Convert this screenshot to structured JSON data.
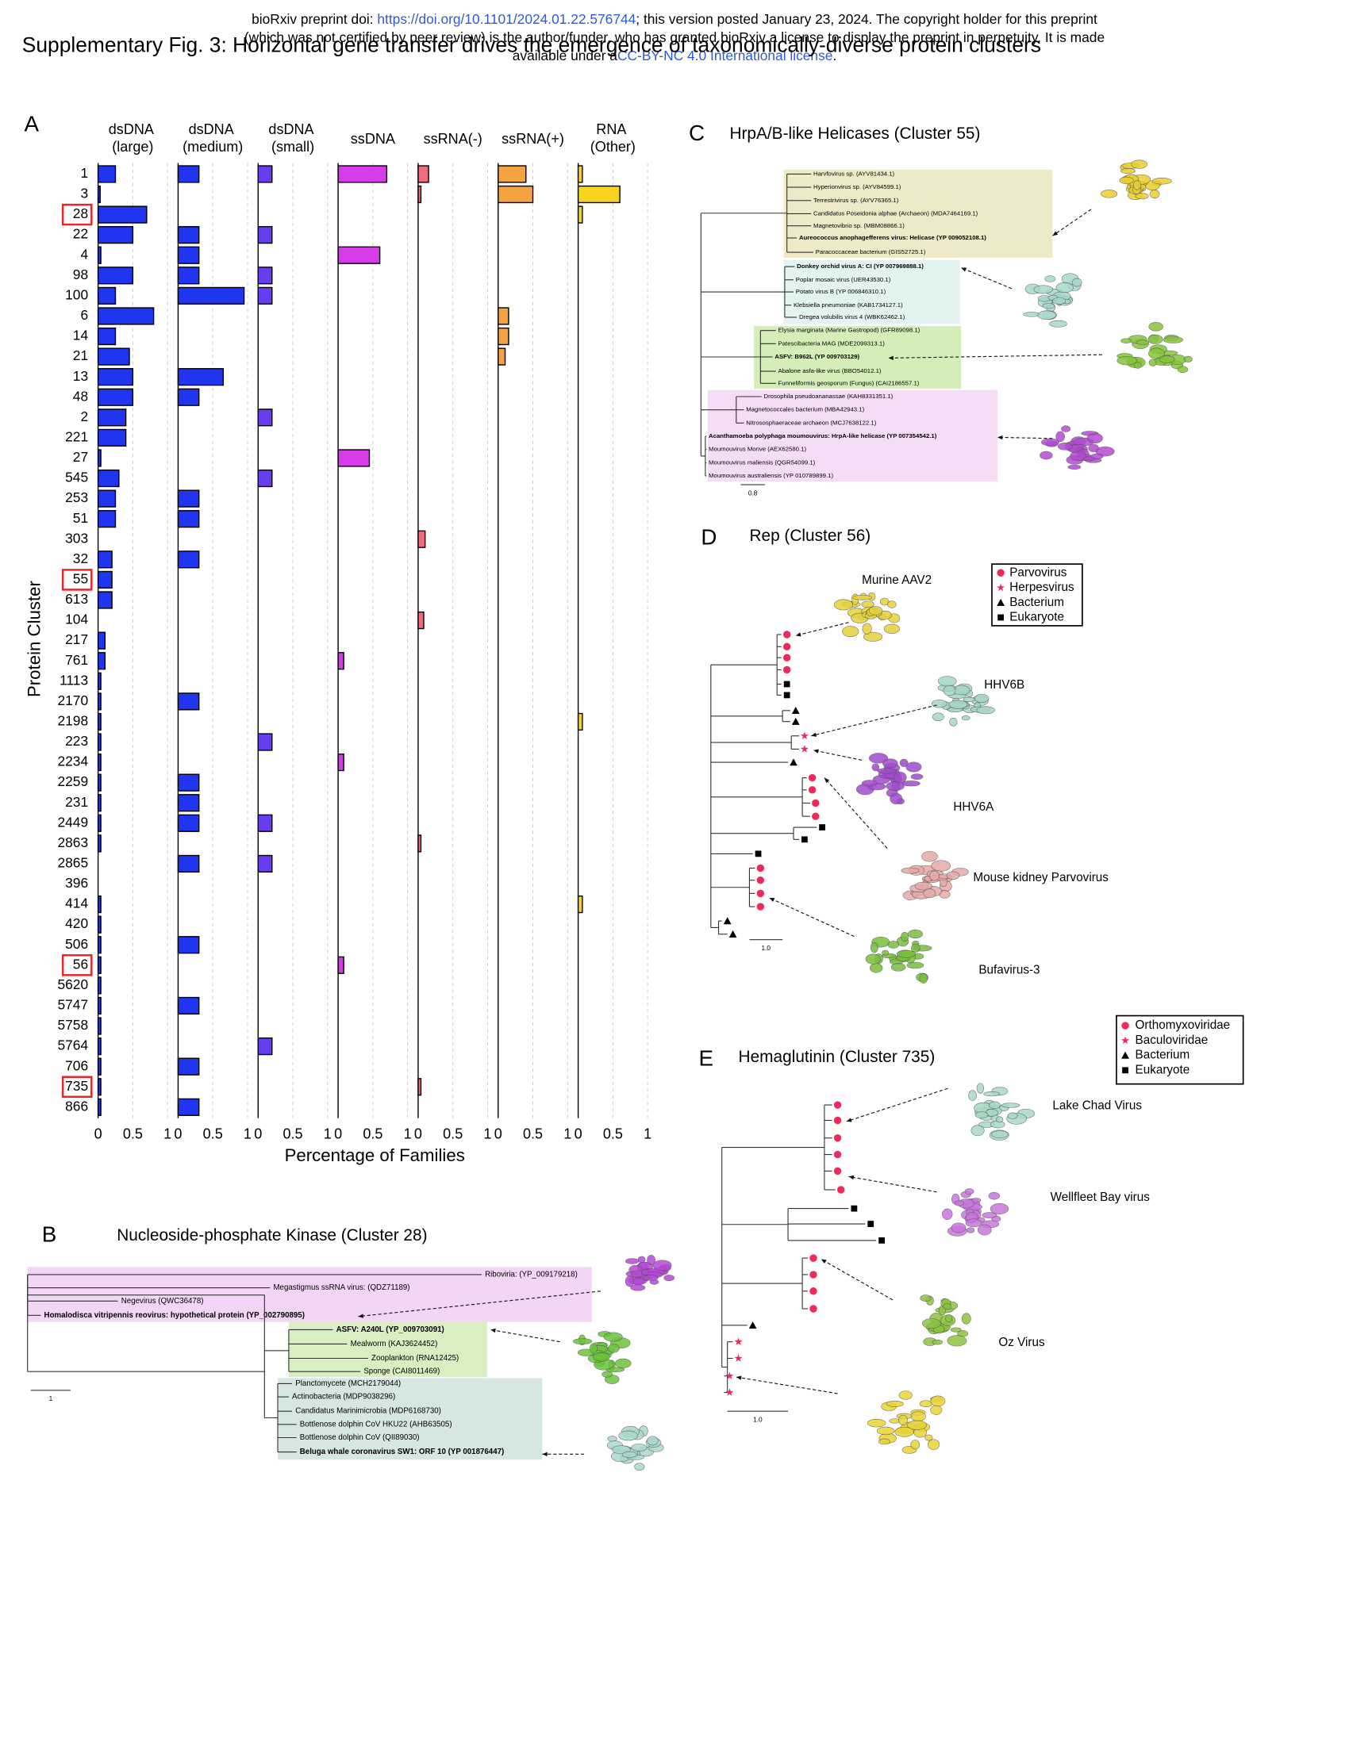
{
  "header": {
    "prefix": "bioRxiv preprint doi: ",
    "doi": "https://doi.org/10.1101/2024.01.22.576744",
    "suffix": "; this version posted January 23, 2024. The copyright holder for this preprint",
    "line2": "(which was not certified by peer review) is the author/funder, who has granted bioRxiv a license to display the preprint in perpetuity. It is made",
    "line3_prefix": "available under a",
    "license": "CC-BY-NC 4.0 International license",
    "line3_suffix": "."
  },
  "title": "Supplementary Fig. 3: Horizontal gene transfer drives the emergence of taxonomically-diverse protein clusters",
  "chart_data": {
    "type": "bar",
    "orientation": "horizontal",
    "panel_label": "A",
    "y_label": "Protein Cluster",
    "x_label": "Percentage of Families",
    "categories": [
      "1",
      "3",
      "28",
      "22",
      "4",
      "98",
      "100",
      "6",
      "14",
      "21",
      "13",
      "48",
      "2",
      "221",
      "27",
      "545",
      "253",
      "51",
      "303",
      "32",
      "55",
      "613",
      "104",
      "217",
      "761",
      "1113",
      "2170",
      "2198",
      "223",
      "2234",
      "2259",
      "231",
      "2449",
      "2863",
      "2865",
      "396",
      "414",
      "420",
      "506",
      "56",
      "5620",
      "5747",
      "5758",
      "5764",
      "706",
      "735",
      "866"
    ],
    "highlighted": [
      2,
      20,
      39,
      45
    ],
    "highlight_color": "#e8262a",
    "xlim": [
      0,
      1
    ],
    "xticks": [
      0,
      0.5,
      1
    ],
    "grid": true,
    "series": [
      {
        "name": "dsDNA (large)",
        "color": "#1f35f0",
        "values": [
          0.25,
          0.03,
          0.7,
          0.5,
          0.04,
          0.5,
          0.25,
          0.8,
          0.25,
          0.45,
          0.5,
          0.5,
          0.4,
          0.4,
          0.04,
          0.3,
          0.25,
          0.25,
          0,
          0.2,
          0.2,
          0.2,
          0,
          0.1,
          0.1,
          0.04,
          0.04,
          0.04,
          0.04,
          0.04,
          0.04,
          0.04,
          0.04,
          0.04,
          0,
          0,
          0.04,
          0.04,
          0.04,
          0.04,
          0.04,
          0.04,
          0.04,
          0.04,
          0.04,
          0.04,
          0.04
        ]
      },
      {
        "name": "dsDNA (medium)",
        "color": "#1f35f0",
        "values": [
          0.3,
          0,
          0,
          0.3,
          0.3,
          0.3,
          0.95,
          0,
          0,
          0,
          0.65,
          0.3,
          0,
          0,
          0,
          0,
          0.3,
          0.3,
          0,
          0.3,
          0,
          0,
          0,
          0,
          0,
          0,
          0.3,
          0,
          0,
          0,
          0.3,
          0.3,
          0.3,
          0,
          0.3,
          0,
          0,
          0,
          0.3,
          0,
          0,
          0.3,
          0,
          0,
          0.3,
          0,
          0.3
        ]
      },
      {
        "name": "dsDNA (small)",
        "color": "#6a3cf0",
        "values": [
          0.2,
          0,
          0,
          0.2,
          0,
          0.2,
          0.2,
          0,
          0,
          0,
          0,
          0,
          0.2,
          0,
          0,
          0.2,
          0,
          0,
          0,
          0,
          0,
          0,
          0,
          0,
          0,
          0,
          0,
          0,
          0.2,
          0,
          0,
          0,
          0.2,
          0,
          0.2,
          0,
          0,
          0,
          0,
          0,
          0,
          0,
          0,
          0.2,
          0,
          0,
          0
        ]
      },
      {
        "name": "ssDNA",
        "color": "#d63de8",
        "values": [
          0.7,
          0,
          0,
          0,
          0.6,
          0,
          0,
          0,
          0,
          0,
          0,
          0,
          0,
          0,
          0.45,
          0,
          0,
          0,
          0,
          0,
          0,
          0,
          0,
          0,
          0.08,
          0,
          0,
          0,
          0,
          0.08,
          0,
          0,
          0,
          0,
          0,
          0,
          0,
          0,
          0,
          0.08,
          0,
          0,
          0,
          0,
          0,
          0,
          0
        ]
      },
      {
        "name": "ssRNA(-)",
        "color": "#f06b7b",
        "values": [
          0.15,
          0.04,
          0,
          0,
          0,
          0,
          0,
          0,
          0,
          0,
          0,
          0,
          0,
          0,
          0,
          0,
          0,
          0,
          0.1,
          0,
          0,
          0,
          0.08,
          0,
          0,
          0,
          0,
          0,
          0,
          0,
          0,
          0,
          0,
          0.04,
          0,
          0,
          0,
          0,
          0,
          0,
          0,
          0,
          0,
          0,
          0,
          0.04,
          0
        ]
      },
      {
        "name": "ssRNA(+)",
        "color": "#f5a340",
        "values": [
          0.4,
          0.5,
          0,
          0,
          0,
          0,
          0,
          0.15,
          0.15,
          0.1,
          0,
          0,
          0,
          0,
          0,
          0,
          0,
          0,
          0,
          0,
          0,
          0,
          0,
          0,
          0,
          0,
          0,
          0,
          0,
          0,
          0,
          0,
          0,
          0,
          0,
          0,
          0,
          0,
          0,
          0,
          0,
          0,
          0,
          0,
          0,
          0,
          0
        ]
      },
      {
        "name": "RNA (Other)",
        "color": "#f7d51f",
        "values": [
          0.06,
          0.6,
          0.06,
          0,
          0,
          0,
          0,
          0,
          0,
          0,
          0,
          0,
          0,
          0,
          0,
          0,
          0,
          0,
          0,
          0,
          0,
          0,
          0,
          0,
          0,
          0,
          0,
          0.06,
          0,
          0,
          0,
          0,
          0,
          0,
          0,
          0,
          0.06,
          0,
          0,
          0,
          0,
          0,
          0,
          0,
          0,
          0,
          0
        ]
      }
    ]
  },
  "panel_b": {
    "label": "B",
    "title": "Nucleoside-phosphate Kinase (Cluster 28)",
    "scale": "1",
    "leaves": [
      {
        "text": "Riboviria: (YP_009179218)",
        "bold": false
      },
      {
        "text": "Megastigmus ssRNA virus: (QDZ71189)",
        "bold": false
      },
      {
        "text": "Negevirus (QWC36478)",
        "bold": false
      },
      {
        "text": "Homalodisca vitripennis reovirus: hypothetical protein (YP_002790895)",
        "bold": true
      },
      {
        "text": "ASFV: A240L (YP_009703091)",
        "bold": true
      },
      {
        "text": "Mealworm (KAJ3624452)",
        "bold": false
      },
      {
        "text": "Zooplankton (RNA12425)",
        "bold": false
      },
      {
        "text": "Sponge (CAI8011469)",
        "bold": false
      },
      {
        "text": "Planctomycete (MCH2179044)",
        "bold": false
      },
      {
        "text": "Actinobacteria (MDP9038296)",
        "bold": false
      },
      {
        "text": "Candidatus Marinimicrobia (MDP6168730)",
        "bold": false
      },
      {
        "text": "Bottlenose dolphin CoV HKU22 (AHB63505)",
        "bold": false
      },
      {
        "text": "Bottlenose dolphin CoV (QII89030)",
        "bold": false
      },
      {
        "text": "Beluga whale coronavirus SW1: ORF 10 (YP 001876447)",
        "bold": true
      }
    ]
  },
  "panel_c": {
    "label": "C",
    "title": "HrpA/B-like Helicases (Cluster 55)",
    "scale": "0.8",
    "leaves": [
      {
        "text": "Harvfovirus sp. (AYV81434.1)",
        "bold": false
      },
      {
        "text": "Hyperionvirus sp. (AYV84599.1)",
        "bold": false
      },
      {
        "text": "Terrestrivirus sp. (AYV76365.1)",
        "bold": false
      },
      {
        "text": "Candidatus Poseidonia alphae (Archaeon) (MDA7464169.1)",
        "bold": false
      },
      {
        "text": "Magnetovibrio sp. (MBM08866.1)",
        "bold": false
      },
      {
        "text": "Aureococcus anophagefferens virus: Helicase (YP 009052108.1)",
        "bold": true
      },
      {
        "text": "Paracoccaceae bacterium (GIS52725.1)",
        "bold": false
      },
      {
        "text": "Donkey orchid virus A: CI (YP 007969888.1)",
        "bold": true
      },
      {
        "text": "Poplar mosaic virus (UER43530.1)",
        "bold": false
      },
      {
        "text": "Potato virus B (YP 006846310.1)",
        "bold": false
      },
      {
        "text": "Klebsiella pneumoniae (KAB1734127.1)",
        "bold": false
      },
      {
        "text": "Dregea volubilis virus 4 (WBK62462.1)",
        "bold": false
      },
      {
        "text": "Elysia marginata (Marine Gastropod) (GFR89098.1)",
        "bold": false
      },
      {
        "text": "Patescibacteria MAG (MDE2099313.1)",
        "bold": false
      },
      {
        "text": "ASFV: B962L (YP 009703129)",
        "bold": true
      },
      {
        "text": "Abalone asfa-like virus (BBO54012.1)",
        "bold": false
      },
      {
        "text": "Funneliformis geosporum (Fungus) (CAI2186557.1)",
        "bold": false
      },
      {
        "text": "Drosophila pseudoananassae (KAH8331351.1)",
        "bold": false
      },
      {
        "text": "Magnetococcales bacterium (MBA42943.1)",
        "bold": false
      },
      {
        "text": "Nitrososphaeraceae archaeon (MCJ7638122.1)",
        "bold": false
      },
      {
        "text": "Acanthamoeba polyphaga moumouvirus: HrpA-like helicase (YP 007354542.1)",
        "bold": true
      },
      {
        "text": "Moumouvirus Monve (AEX62580.1)",
        "bold": false
      },
      {
        "text": "Moumouvirus maliensis (QGR54099.1)",
        "bold": false
      },
      {
        "text": "Moumouvirus australiensis (YP 010789899.1)",
        "bold": false
      }
    ]
  },
  "panel_d": {
    "label": "D",
    "title": "Rep (Cluster 56)",
    "scale": "1.0",
    "structures": [
      "Murine AAV2",
      "HHV6B",
      "HHV6A",
      "Mouse kidney Parvovirus",
      "Bufavirus-3"
    ],
    "legend": [
      "Parvovirus",
      "Herpesvirus",
      "Bacterium",
      "Eukaryote"
    ]
  },
  "panel_e": {
    "label": "E",
    "title": "Hemaglutinin (Cluster 735)",
    "scale": "1.0",
    "structures": [
      "Lake Chad Virus",
      "Wellfleet Bay virus",
      "Oz Virus"
    ],
    "legend": [
      "Orthomyxoviridae",
      "Baculoviridae",
      "Bacterium",
      "Eukaryote"
    ]
  }
}
